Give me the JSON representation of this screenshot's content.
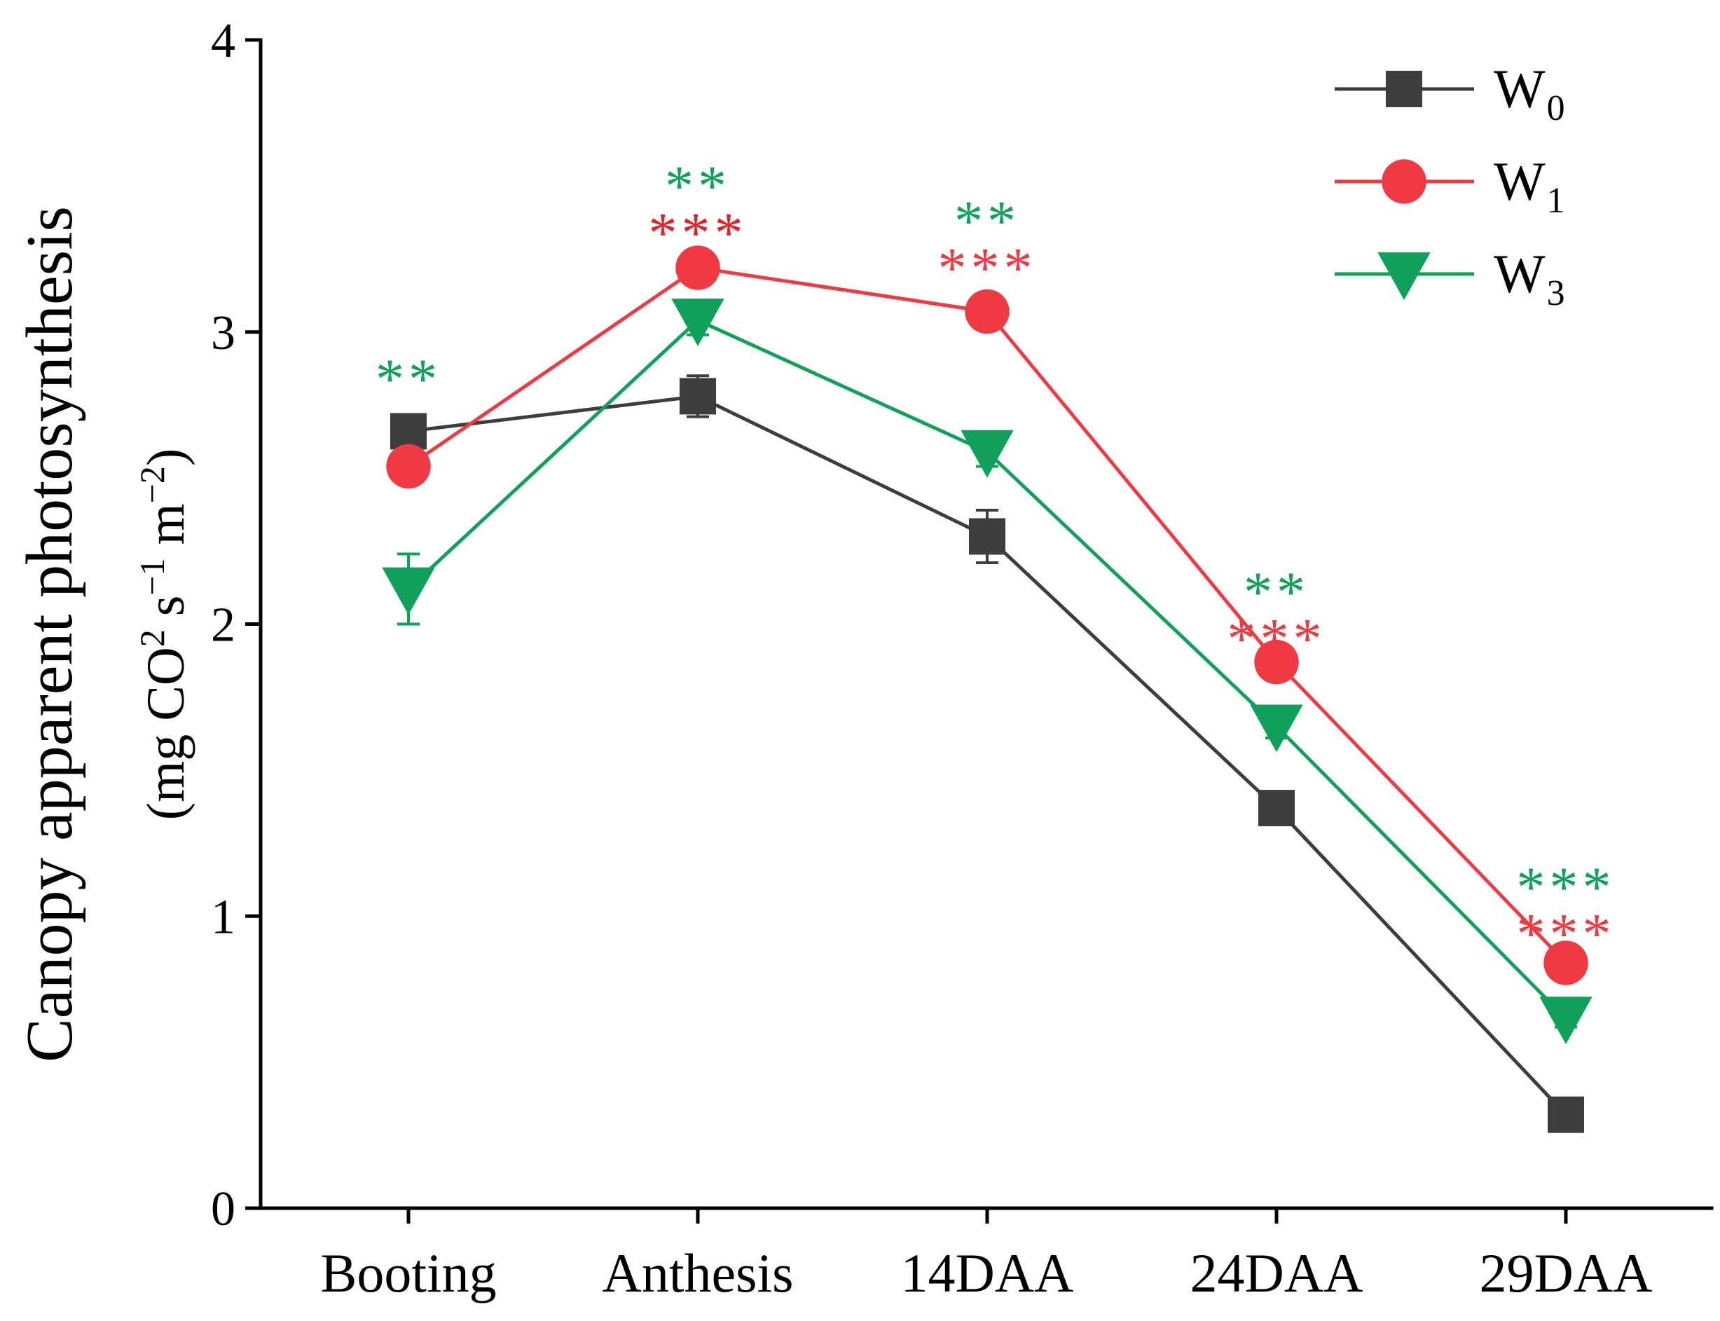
{
  "chart_data": {
    "type": "line",
    "title": "",
    "xlabel": "",
    "ylabel": "Canopy apparent photosynthesis",
    "ylabel_unit": {
      "open": "(mg CO",
      "sup1": "2",
      "mid1": " s",
      "sup2": "−1",
      "mid2": " m",
      "sup3": "−2",
      "close": ")"
    },
    "categories": [
      "Booting",
      "Anthesis",
      "14DAA",
      "24DAA",
      "29DAA"
    ],
    "ylim": [
      0,
      4
    ],
    "yticks": [
      0,
      1,
      2,
      3,
      4
    ],
    "ytick_labels": [
      "0",
      "1",
      "2",
      "3",
      "4"
    ],
    "grid": false,
    "legend_position": "top-right",
    "series": [
      {
        "name": "W",
        "subscript": "0",
        "color": "#3d3d3d",
        "marker": "square",
        "values": [
          2.66,
          2.78,
          2.3,
          1.37,
          0.32
        ],
        "errors": [
          0.03,
          0.07,
          0.09,
          0.04,
          0.03
        ]
      },
      {
        "name": "W",
        "subscript": "1",
        "color": "#f03a43",
        "marker": "circle",
        "values": [
          2.54,
          3.22,
          3.07,
          1.87,
          0.84
        ],
        "errors": [
          0.04,
          0.06,
          0.05,
          0.04,
          0.03
        ]
      },
      {
        "name": "W",
        "subscript": "3",
        "color": "#0fa05a",
        "marker": "triangle-down",
        "values": [
          2.12,
          3.04,
          2.59,
          1.65,
          0.65
        ],
        "errors": [
          0.12,
          0.05,
          0.05,
          0.04,
          0.03
        ]
      }
    ],
    "annotations": [
      {
        "category": "Booting",
        "y": 2.88,
        "text": "**",
        "color": "#0fa05a"
      },
      {
        "category": "Anthesis",
        "y": 3.54,
        "text": "**",
        "color": "#0fa05a"
      },
      {
        "category": "Anthesis",
        "y": 3.38,
        "text": "***",
        "color": "#e0232b"
      },
      {
        "category": "14DAA",
        "y": 3.42,
        "text": "**",
        "color": "#0fa05a"
      },
      {
        "category": "14DAA",
        "y": 3.26,
        "text": "***",
        "color": "#f03a43"
      },
      {
        "category": "24DAA",
        "y": 2.15,
        "text": "**",
        "color": "#0fa05a"
      },
      {
        "category": "24DAA",
        "y": 1.99,
        "text": "***",
        "color": "#f03a43"
      },
      {
        "category": "29DAA",
        "y": 1.14,
        "text": "***",
        "color": "#0fa05a"
      },
      {
        "category": "29DAA",
        "y": 0.98,
        "text": "***",
        "color": "#f03a43"
      }
    ]
  }
}
